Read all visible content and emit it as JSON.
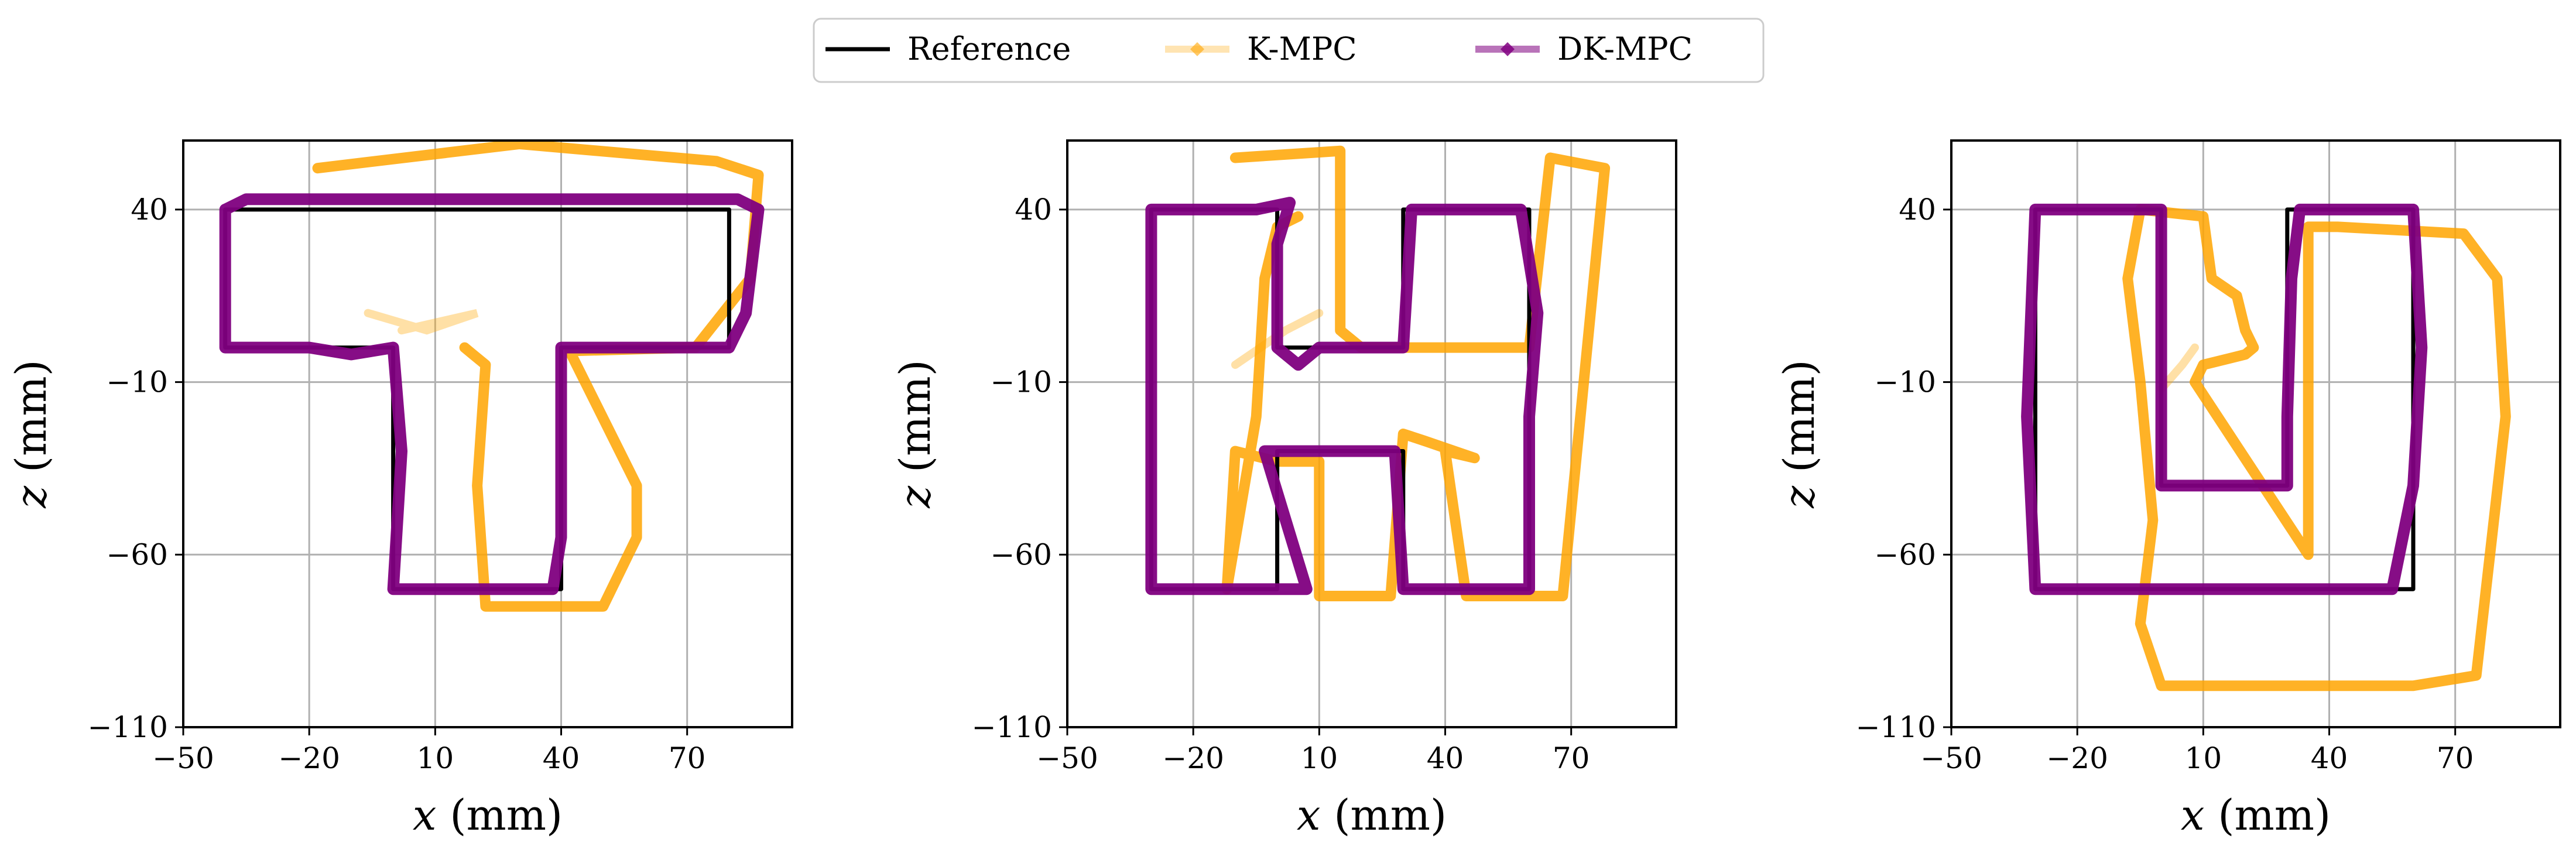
{
  "legend": {
    "placement": "top-center",
    "entries": [
      {
        "label": "Reference",
        "color": "#000000",
        "marker": "none",
        "opacity": 1.0
      },
      {
        "label": "K-MPC",
        "color": "#FFA500",
        "marker": "diamond",
        "opacity": 0.3
      },
      {
        "label": "DK-MPC",
        "color": "#800080",
        "marker": "diamond",
        "opacity": 0.55
      }
    ]
  },
  "colors": {
    "reference": "#000000",
    "kmpc": "#FFA500",
    "dkmpc": "#800080"
  },
  "chart_data": [
    {
      "type": "line",
      "letter": "T",
      "xlabel_var": "x",
      "xlabel_unit": " (mm)",
      "ylabel_var": "z",
      "ylabel_unit": " (mm)",
      "xlim": [
        -50,
        95
      ],
      "ylim": [
        -110,
        60
      ],
      "xticks": [
        -50,
        -20,
        10,
        40,
        70
      ],
      "yticks": [
        -110,
        -60,
        -10,
        40
      ],
      "xtick_labels": [
        "−50",
        "−20",
        "10",
        "40",
        "70"
      ],
      "ytick_labels": [
        "−110",
        "−60",
        "−10",
        "40"
      ],
      "grid": true,
      "series": [
        {
          "name": "Reference",
          "x": [
            -40,
            80,
            80,
            40,
            40,
            0,
            0,
            -40,
            -40
          ],
          "y": [
            40,
            40,
            0,
            0,
            -70,
            -70,
            0,
            0,
            40
          ]
        },
        {
          "name": "K-MPC",
          "x": [
            -18,
            30,
            77,
            87,
            85,
            72,
            42,
            58,
            58,
            50,
            40,
            22,
            20,
            22,
            19,
            17
          ],
          "y": [
            52,
            59,
            54,
            50,
            20,
            0,
            -1,
            -40,
            -55,
            -75,
            -75,
            -75,
            -40,
            -5,
            -2,
            0
          ],
          "faded": [
            [
              2,
              5
            ],
            [
              20,
              10
            ],
            [
              8,
              5
            ],
            [
              -6,
              10
            ]
          ]
        },
        {
          "name": "DK-MPC",
          "x": [
            -40,
            -35,
            20,
            82,
            87,
            84,
            80,
            40,
            40,
            40,
            38,
            0,
            2,
            0,
            -10,
            -20,
            -40,
            -40
          ],
          "y": [
            40,
            43,
            43,
            43,
            40,
            10,
            0,
            0,
            -20,
            -55,
            -70,
            -70,
            -30,
            0,
            -2,
            0,
            0,
            40
          ]
        }
      ]
    },
    {
      "type": "line",
      "letter": "H",
      "xlabel_var": "x",
      "xlabel_unit": " (mm)",
      "ylabel_var": "z",
      "ylabel_unit": " (mm)",
      "xlim": [
        -50,
        95
      ],
      "ylim": [
        -110,
        60
      ],
      "xticks": [
        -50,
        -20,
        10,
        40,
        70
      ],
      "yticks": [
        -110,
        -60,
        -10,
        40
      ],
      "xtick_labels": [
        "−50",
        "−20",
        "10",
        "40",
        "70"
      ],
      "ytick_labels": [
        "−110",
        "−60",
        "−10",
        "40"
      ],
      "grid": true,
      "series": [
        {
          "name": "Reference",
          "x": [
            -30,
            0,
            0,
            30,
            30,
            60,
            60,
            30,
            30,
            0,
            0,
            -30,
            -30
          ],
          "y": [
            40,
            40,
            0,
            0,
            40,
            40,
            -70,
            -70,
            -30,
            -30,
            -70,
            -70,
            40
          ]
        },
        {
          "name": "K-MPC",
          "x": [
            -10,
            15,
            15,
            20,
            48,
            60,
            65,
            78,
            68,
            45,
            40,
            47,
            35,
            30,
            27,
            10,
            10,
            0,
            -10,
            -12,
            -5,
            -3,
            0,
            5
          ],
          "y": [
            55,
            57,
            5,
            0,
            0,
            0,
            55,
            52,
            -72,
            -72,
            -30,
            -32,
            -27,
            -25,
            -72,
            -72,
            -33,
            -33,
            -30,
            -70,
            -20,
            20,
            35,
            38
          ],
          "faded": [
            [
              -10,
              -5
            ],
            [
              2,
              5
            ],
            [
              10,
              10
            ]
          ]
        },
        {
          "name": "DK-MPC",
          "x": [
            -30,
            -5,
            3,
            0,
            0,
            5,
            10,
            30,
            31,
            32,
            58,
            62,
            60,
            60,
            40,
            30,
            28,
            0,
            -3,
            7,
            0,
            -30,
            -30,
            -30
          ],
          "y": [
            40,
            40,
            42,
            30,
            0,
            -5,
            0,
            0,
            20,
            40,
            40,
            10,
            -20,
            -70,
            -70,
            -70,
            -30,
            -30,
            -30,
            -70,
            -70,
            -70,
            -20,
            40
          ]
        }
      ]
    },
    {
      "type": "line",
      "letter": "U",
      "xlabel_var": "x",
      "xlabel_unit": " (mm)",
      "ylabel_var": "z",
      "ylabel_unit": " (mm)",
      "xlim": [
        -50,
        95
      ],
      "ylim": [
        -110,
        60
      ],
      "xticks": [
        -50,
        -20,
        10,
        40,
        70
      ],
      "yticks": [
        -110,
        -60,
        -10,
        40
      ],
      "xtick_labels": [
        "−50",
        "−20",
        "10",
        "40",
        "70"
      ],
      "ytick_labels": [
        "−110",
        "−60",
        "−10",
        "40"
      ],
      "grid": true,
      "series": [
        {
          "name": "Reference",
          "x": [
            -30,
            0,
            0,
            30,
            30,
            60,
            60,
            -30,
            -30
          ],
          "y": [
            40,
            40,
            -40,
            -40,
            40,
            40,
            -70,
            -70,
            40
          ]
        },
        {
          "name": "K-MPC",
          "x": [
            -5,
            10,
            12,
            18,
            20,
            22,
            20,
            10,
            8,
            35,
            35,
            42,
            72,
            80,
            82,
            75,
            60,
            0,
            -5,
            -2,
            -5,
            -8,
            -5
          ],
          "y": [
            40,
            38,
            20,
            15,
            5,
            0,
            -2,
            -5,
            -10,
            -60,
            35,
            35,
            33,
            20,
            -20,
            -95,
            -98,
            -98,
            -80,
            -50,
            -10,
            20,
            40
          ],
          "faded": [
            [
              0,
              -12
            ],
            [
              5,
              -5
            ],
            [
              8,
              0
            ]
          ]
        },
        {
          "name": "DK-MPC",
          "x": [
            -30,
            -10,
            0,
            0,
            0,
            30,
            30,
            31,
            33,
            55,
            60,
            62,
            60,
            55,
            -30,
            -32,
            -30
          ],
          "y": [
            40,
            40,
            40,
            0,
            -40,
            -40,
            -20,
            20,
            40,
            40,
            40,
            0,
            -40,
            -70,
            -70,
            -20,
            40
          ]
        }
      ]
    }
  ]
}
